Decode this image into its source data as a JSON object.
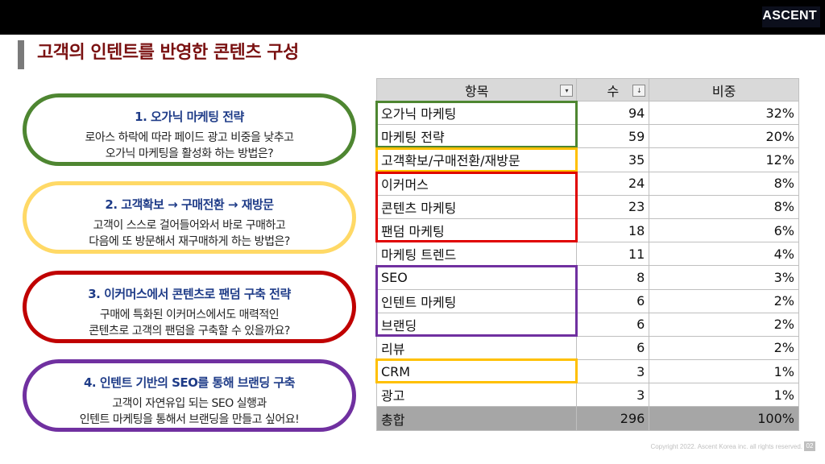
{
  "header": {
    "logo": "ASCENT"
  },
  "title": "고객의 인텐트를 반영한 콘텐츠 구성",
  "cards": [
    {
      "title": "1. 오가닉 마케팅 전략",
      "line1": "로아스 하락에 따라 페이드 광고 비중을 낮추고",
      "line2": "오가닉 마케팅을 활성화 하는 방법은?",
      "color": "#4e8631"
    },
    {
      "title": "2. 고객확보 → 구매전환 → 재방문",
      "line1": "고객이 스스로 걸어들어와서 바로 구매하고",
      "line2": "다음에 또 방문해서 재구매하게 하는 방법은?",
      "color": "#ffd966"
    },
    {
      "title": "3. 이커머스에서 콘텐츠로 팬덤 구축 전략",
      "line1": "구매에 특화된 이커머스에서도 매력적인",
      "line2": "콘텐츠로 고객의 팬덤을 구축할 수 있을까요?",
      "color": "#c00000"
    },
    {
      "title": "4. 인텐트 기반의 SEO를 통해 브랜딩 구축",
      "line1": "고객이 자연유입 되는 SEO 실행과",
      "line2": "인텐트 마케팅을 통해서 브랜딩을 만들고 싶어요!",
      "color": "#7030a0"
    }
  ],
  "table": {
    "headers": {
      "item": "항목",
      "count": "수",
      "ratio": "비중",
      "filter_icon": "▾",
      "sort_icon": "↓"
    },
    "rows": [
      {
        "item": "오가닉 마케팅",
        "count": "94",
        "ratio": "32%"
      },
      {
        "item": "마케팅 전략",
        "count": "59",
        "ratio": "20%"
      },
      {
        "item": "고객확보/구매전환/재방문",
        "count": "35",
        "ratio": "12%"
      },
      {
        "item": "이커머스",
        "count": "24",
        "ratio": "8%"
      },
      {
        "item": "콘텐츠 마케팅",
        "count": "23",
        "ratio": "8%"
      },
      {
        "item": "팬덤 마케팅",
        "count": "18",
        "ratio": "6%"
      },
      {
        "item": "마케팅 트렌드",
        "count": "11",
        "ratio": "4%"
      },
      {
        "item": "SEO",
        "count": "8",
        "ratio": "3%"
      },
      {
        "item": "인텐트 마케팅",
        "count": "6",
        "ratio": "2%"
      },
      {
        "item": "브랜딩",
        "count": "6",
        "ratio": "2%"
      },
      {
        "item": "리뷰",
        "count": "6",
        "ratio": "2%"
      },
      {
        "item": "CRM",
        "count": "3",
        "ratio": "1%"
      },
      {
        "item": "광고",
        "count": "3",
        "ratio": "1%"
      }
    ],
    "total": {
      "item": "총합",
      "count": "296",
      "ratio": "100%"
    }
  },
  "footer": {
    "copyright": "Copyright 2022. Ascent Korea inc. all rights reserved.",
    "page": "02"
  }
}
